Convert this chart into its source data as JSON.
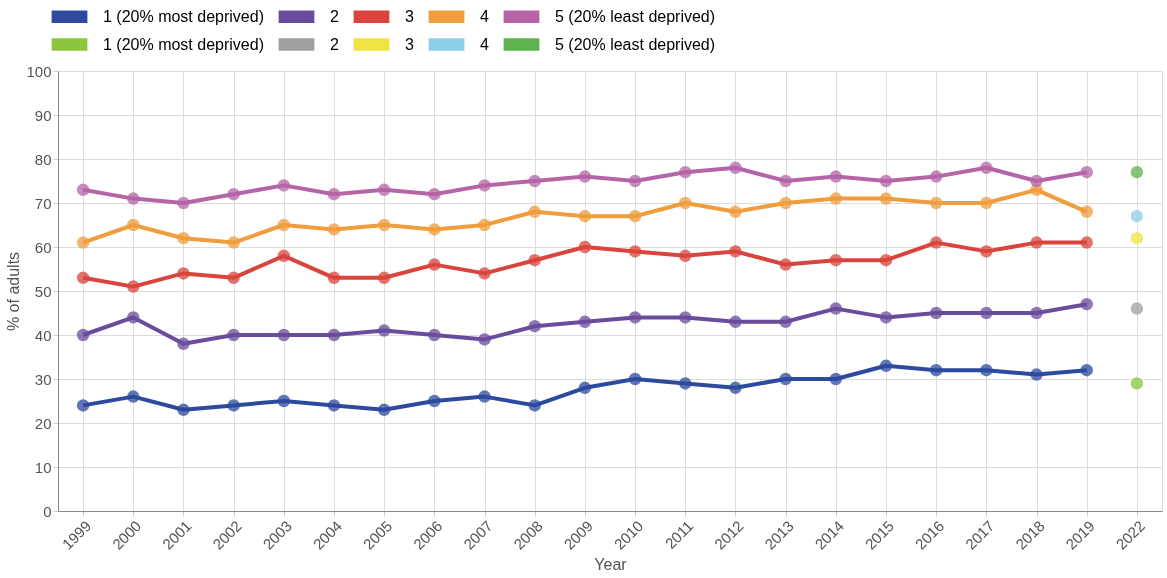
{
  "chart_data": {
    "type": "line",
    "xlabel": "Year",
    "ylabel": "% of adults",
    "categories": [
      "1999",
      "2000",
      "2001",
      "2002",
      "2003",
      "2004",
      "2005",
      "2006",
      "2007",
      "2008",
      "2009",
      "2010",
      "2011",
      "2012",
      "2013",
      "2014",
      "2015",
      "2016",
      "2017",
      "2018",
      "2019",
      "2022"
    ],
    "ylim": [
      0,
      100
    ],
    "yticks": [
      0,
      10,
      20,
      30,
      40,
      50,
      60,
      70,
      80,
      90,
      100
    ],
    "grid": true,
    "legend": "top",
    "marker": "circle",
    "line_style": "solid",
    "series": [
      {
        "name": "1 (20% most deprived)",
        "color": "#2e4a9e",
        "values": [
          24,
          26,
          23,
          24,
          25,
          24,
          23,
          25,
          26,
          24,
          28,
          30,
          29,
          28,
          30,
          30,
          33,
          32,
          32,
          31,
          32,
          null
        ]
      },
      {
        "name": "2",
        "color": "#6a4c9c",
        "values": [
          40,
          44,
          38,
          40,
          40,
          40,
          41,
          40,
          39,
          42,
          43,
          44,
          44,
          43,
          43,
          46,
          44,
          45,
          45,
          45,
          47,
          null
        ]
      },
      {
        "name": "3",
        "color": "#d9453d",
        "values": [
          53,
          51,
          54,
          53,
          58,
          53,
          53,
          56,
          54,
          57,
          60,
          59,
          58,
          59,
          56,
          57,
          57,
          61,
          59,
          61,
          61,
          null
        ]
      },
      {
        "name": "4",
        "color": "#f09d3e",
        "values": [
          61,
          65,
          62,
          61,
          65,
          64,
          65,
          64,
          65,
          68,
          67,
          67,
          70,
          68,
          70,
          71,
          71,
          70,
          70,
          73,
          68,
          null
        ]
      },
      {
        "name": "5 (20% least deprived)",
        "color": "#b565a7",
        "values": [
          73,
          71,
          70,
          72,
          74,
          72,
          73,
          72,
          74,
          75,
          76,
          75,
          77,
          78,
          75,
          76,
          75,
          76,
          78,
          75,
          77,
          null
        ]
      },
      {
        "name": "1 (20% most deprived)",
        "color": "#8cc63f",
        "values": [
          null,
          null,
          null,
          null,
          null,
          null,
          null,
          null,
          null,
          null,
          null,
          null,
          null,
          null,
          null,
          null,
          null,
          null,
          null,
          null,
          null,
          29
        ]
      },
      {
        "name": "2",
        "color": "#a0a0a0",
        "values": [
          null,
          null,
          null,
          null,
          null,
          null,
          null,
          null,
          null,
          null,
          null,
          null,
          null,
          null,
          null,
          null,
          null,
          null,
          null,
          null,
          null,
          46
        ]
      },
      {
        "name": "3",
        "color": "#f0e442",
        "values": [
          null,
          null,
          null,
          null,
          null,
          null,
          null,
          null,
          null,
          null,
          null,
          null,
          null,
          null,
          null,
          null,
          null,
          null,
          null,
          null,
          null,
          62
        ]
      },
      {
        "name": "4",
        "color": "#8ecfe8",
        "values": [
          null,
          null,
          null,
          null,
          null,
          null,
          null,
          null,
          null,
          null,
          null,
          null,
          null,
          null,
          null,
          null,
          null,
          null,
          null,
          null,
          null,
          67
        ]
      },
      {
        "name": "5 (20% least deprived)",
        "color": "#5fb34e",
        "values": [
          null,
          null,
          null,
          null,
          null,
          null,
          null,
          null,
          null,
          null,
          null,
          null,
          null,
          null,
          null,
          null,
          null,
          null,
          null,
          null,
          null,
          77
        ]
      }
    ]
  }
}
